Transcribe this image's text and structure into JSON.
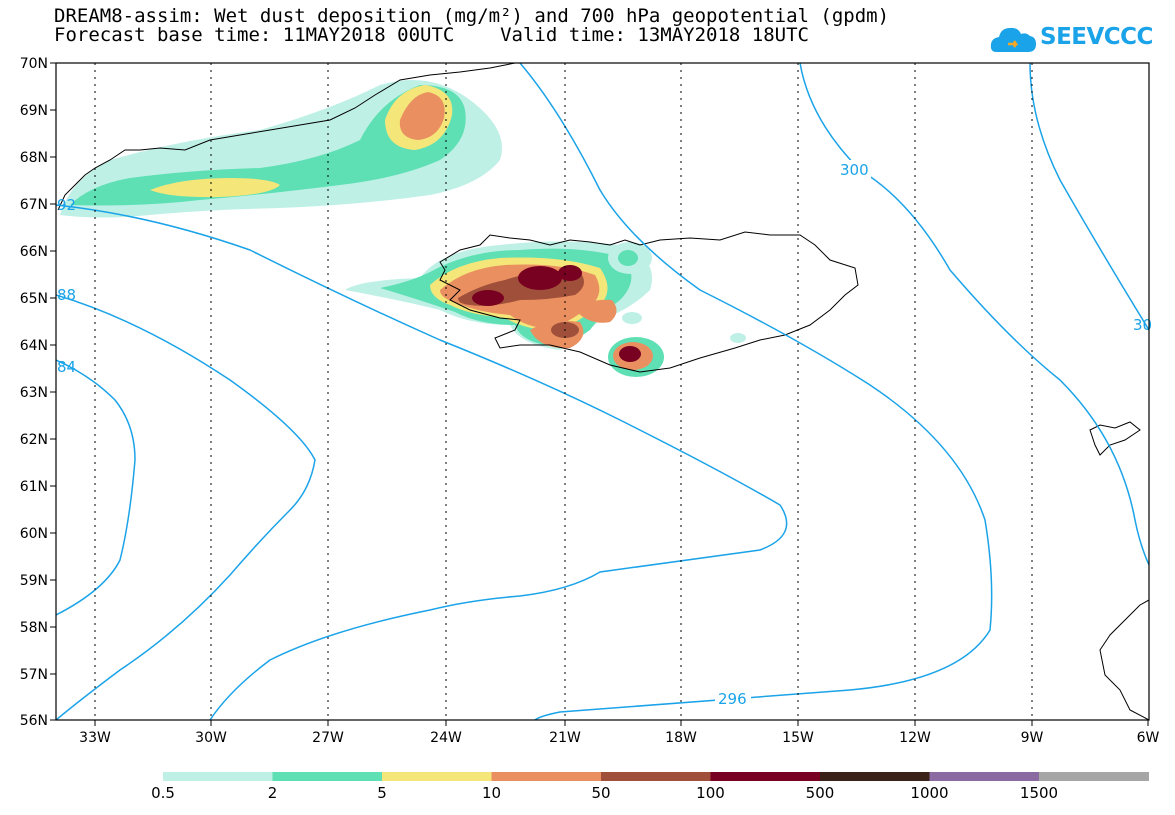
{
  "title": {
    "line1": "DREAM8-assim: Wet dust deposition (mg/m²) and 700 hPa geopotential (gpdm)",
    "line2": "Forecast base time: 11MAY2018 00UTC    Valid time: 13MAY2018 18UTC"
  },
  "logo": {
    "text": "SEEVCCC",
    "color": "#1aa3e8",
    "icon": "cloud-icon"
  },
  "map": {
    "lon_range": [
      -34,
      -6
    ],
    "lat_range": [
      56,
      70
    ],
    "grid": true,
    "lat_labels": [
      "70N",
      "69N",
      "68N",
      "67N",
      "66N",
      "65N",
      "64N",
      "63N",
      "62N",
      "61N",
      "60N",
      "59N",
      "58N",
      "57N",
      "56N"
    ],
    "lon_labels": [
      "33W",
      "30W",
      "27W",
      "24W",
      "21W",
      "18W",
      "15W",
      "12W",
      "9W",
      "6W"
    ],
    "contour_color": "#1aa3e8",
    "contour_labels": [
      "300",
      "296",
      "92",
      "88",
      "84",
      "30"
    ]
  },
  "colorbar": {
    "colors": [
      "#bff0e6",
      "#5ee0b4",
      "#f5e67a",
      "#ea9060",
      "#a0503a",
      "#780020",
      "#3a2218",
      "#8a6aa0",
      "#a6a6a6"
    ],
    "labels": [
      "0.5",
      "2",
      "5",
      "10",
      "50",
      "100",
      "500",
      "1000",
      "1500"
    ]
  }
}
